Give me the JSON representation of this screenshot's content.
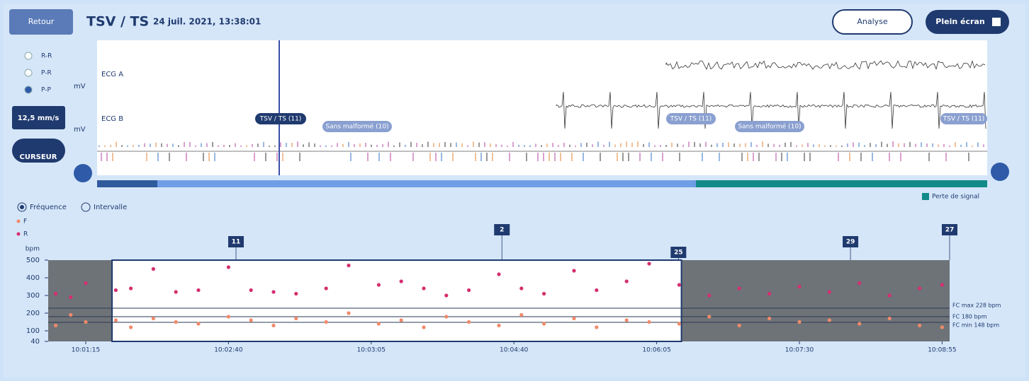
{
  "header": {
    "back": "Retour",
    "title": "TSV / TS",
    "date": "24 juil. 2021, 13:38:01",
    "analyse": "Analyse",
    "fullscreen": "Plein écran"
  },
  "sidebar": {
    "options": [
      "R-R",
      "P-R",
      "P-P"
    ],
    "speed": "12,5 mm/s",
    "cursor": "CURSEUR"
  },
  "ecg": {
    "leads": [
      "ECG A",
      "ECG B"
    ],
    "unit": "mV",
    "annotations": [
      "TSV / TS (11)",
      "Sans malformé (10)",
      "TSV / TS (11)",
      "Sans malformé (10)",
      "TSV / TS (11)"
    ],
    "signal_loss": "Perte de signal"
  },
  "view": {
    "frequency": "Fréquence",
    "interval": "Intervalle"
  },
  "chart_data": {
    "type": "scatter",
    "y_label": "bpm",
    "x": [
      1,
      3,
      5,
      9,
      11,
      14,
      17,
      20,
      24,
      27,
      30,
      33,
      37,
      40,
      44,
      47,
      50,
      53,
      56,
      60,
      63,
      66,
      70,
      73,
      77,
      80,
      84,
      88,
      92,
      96,
      100,
      104,
      108,
      112,
      116,
      119
    ],
    "series": [
      {
        "name": "F",
        "color": "#f08a6a",
        "values": [
          130,
          190,
          150,
          160,
          120,
          170,
          150,
          140,
          180,
          160,
          130,
          170,
          150,
          200,
          140,
          160,
          120,
          180,
          150,
          130,
          190,
          140,
          170,
          120,
          160,
          150,
          140,
          180,
          130,
          170,
          150,
          160,
          140,
          170,
          130,
          120
        ]
      },
      {
        "name": "R",
        "color": "#d42f6e",
        "values": [
          310,
          290,
          370,
          330,
          340,
          450,
          320,
          330,
          460,
          330,
          320,
          310,
          340,
          470,
          360,
          380,
          340,
          300,
          330,
          420,
          340,
          310,
          440,
          330,
          380,
          480,
          360,
          300,
          340,
          310,
          350,
          320,
          370,
          300,
          340,
          360
        ]
      }
    ],
    "xlim": [
      0,
      120
    ],
    "ylim": [
      40,
      500
    ],
    "yticks": [
      40,
      100,
      200,
      300,
      400,
      500
    ],
    "xticks": [
      {
        "value": 5,
        "label": "10:01:15"
      },
      {
        "value": 24,
        "label": "10:02:40"
      },
      {
        "value": 43,
        "label": "10:03:05"
      },
      {
        "value": 62,
        "label": "10:04:40"
      },
      {
        "value": 81,
        "label": "10:06:05"
      },
      {
        "value": 100,
        "label": "10:07:30"
      },
      {
        "value": 119,
        "label": "10:08:55"
      }
    ],
    "highlight": [
      8.5,
      84.3
    ],
    "reference_lines": [
      {
        "value": 228,
        "label": "FC max 228 bpm"
      },
      {
        "value": 180,
        "label": "FC 180 bpm"
      },
      {
        "value": 148,
        "label": "FC min 148 bpm"
      }
    ],
    "markers": [
      {
        "x": 25,
        "label": "11"
      },
      {
        "x": 60.4,
        "label": "2"
      },
      {
        "x": 83.9,
        "label": "25"
      },
      {
        "x": 106.8,
        "label": "29"
      },
      {
        "x": 120,
        "label": "27"
      }
    ]
  }
}
